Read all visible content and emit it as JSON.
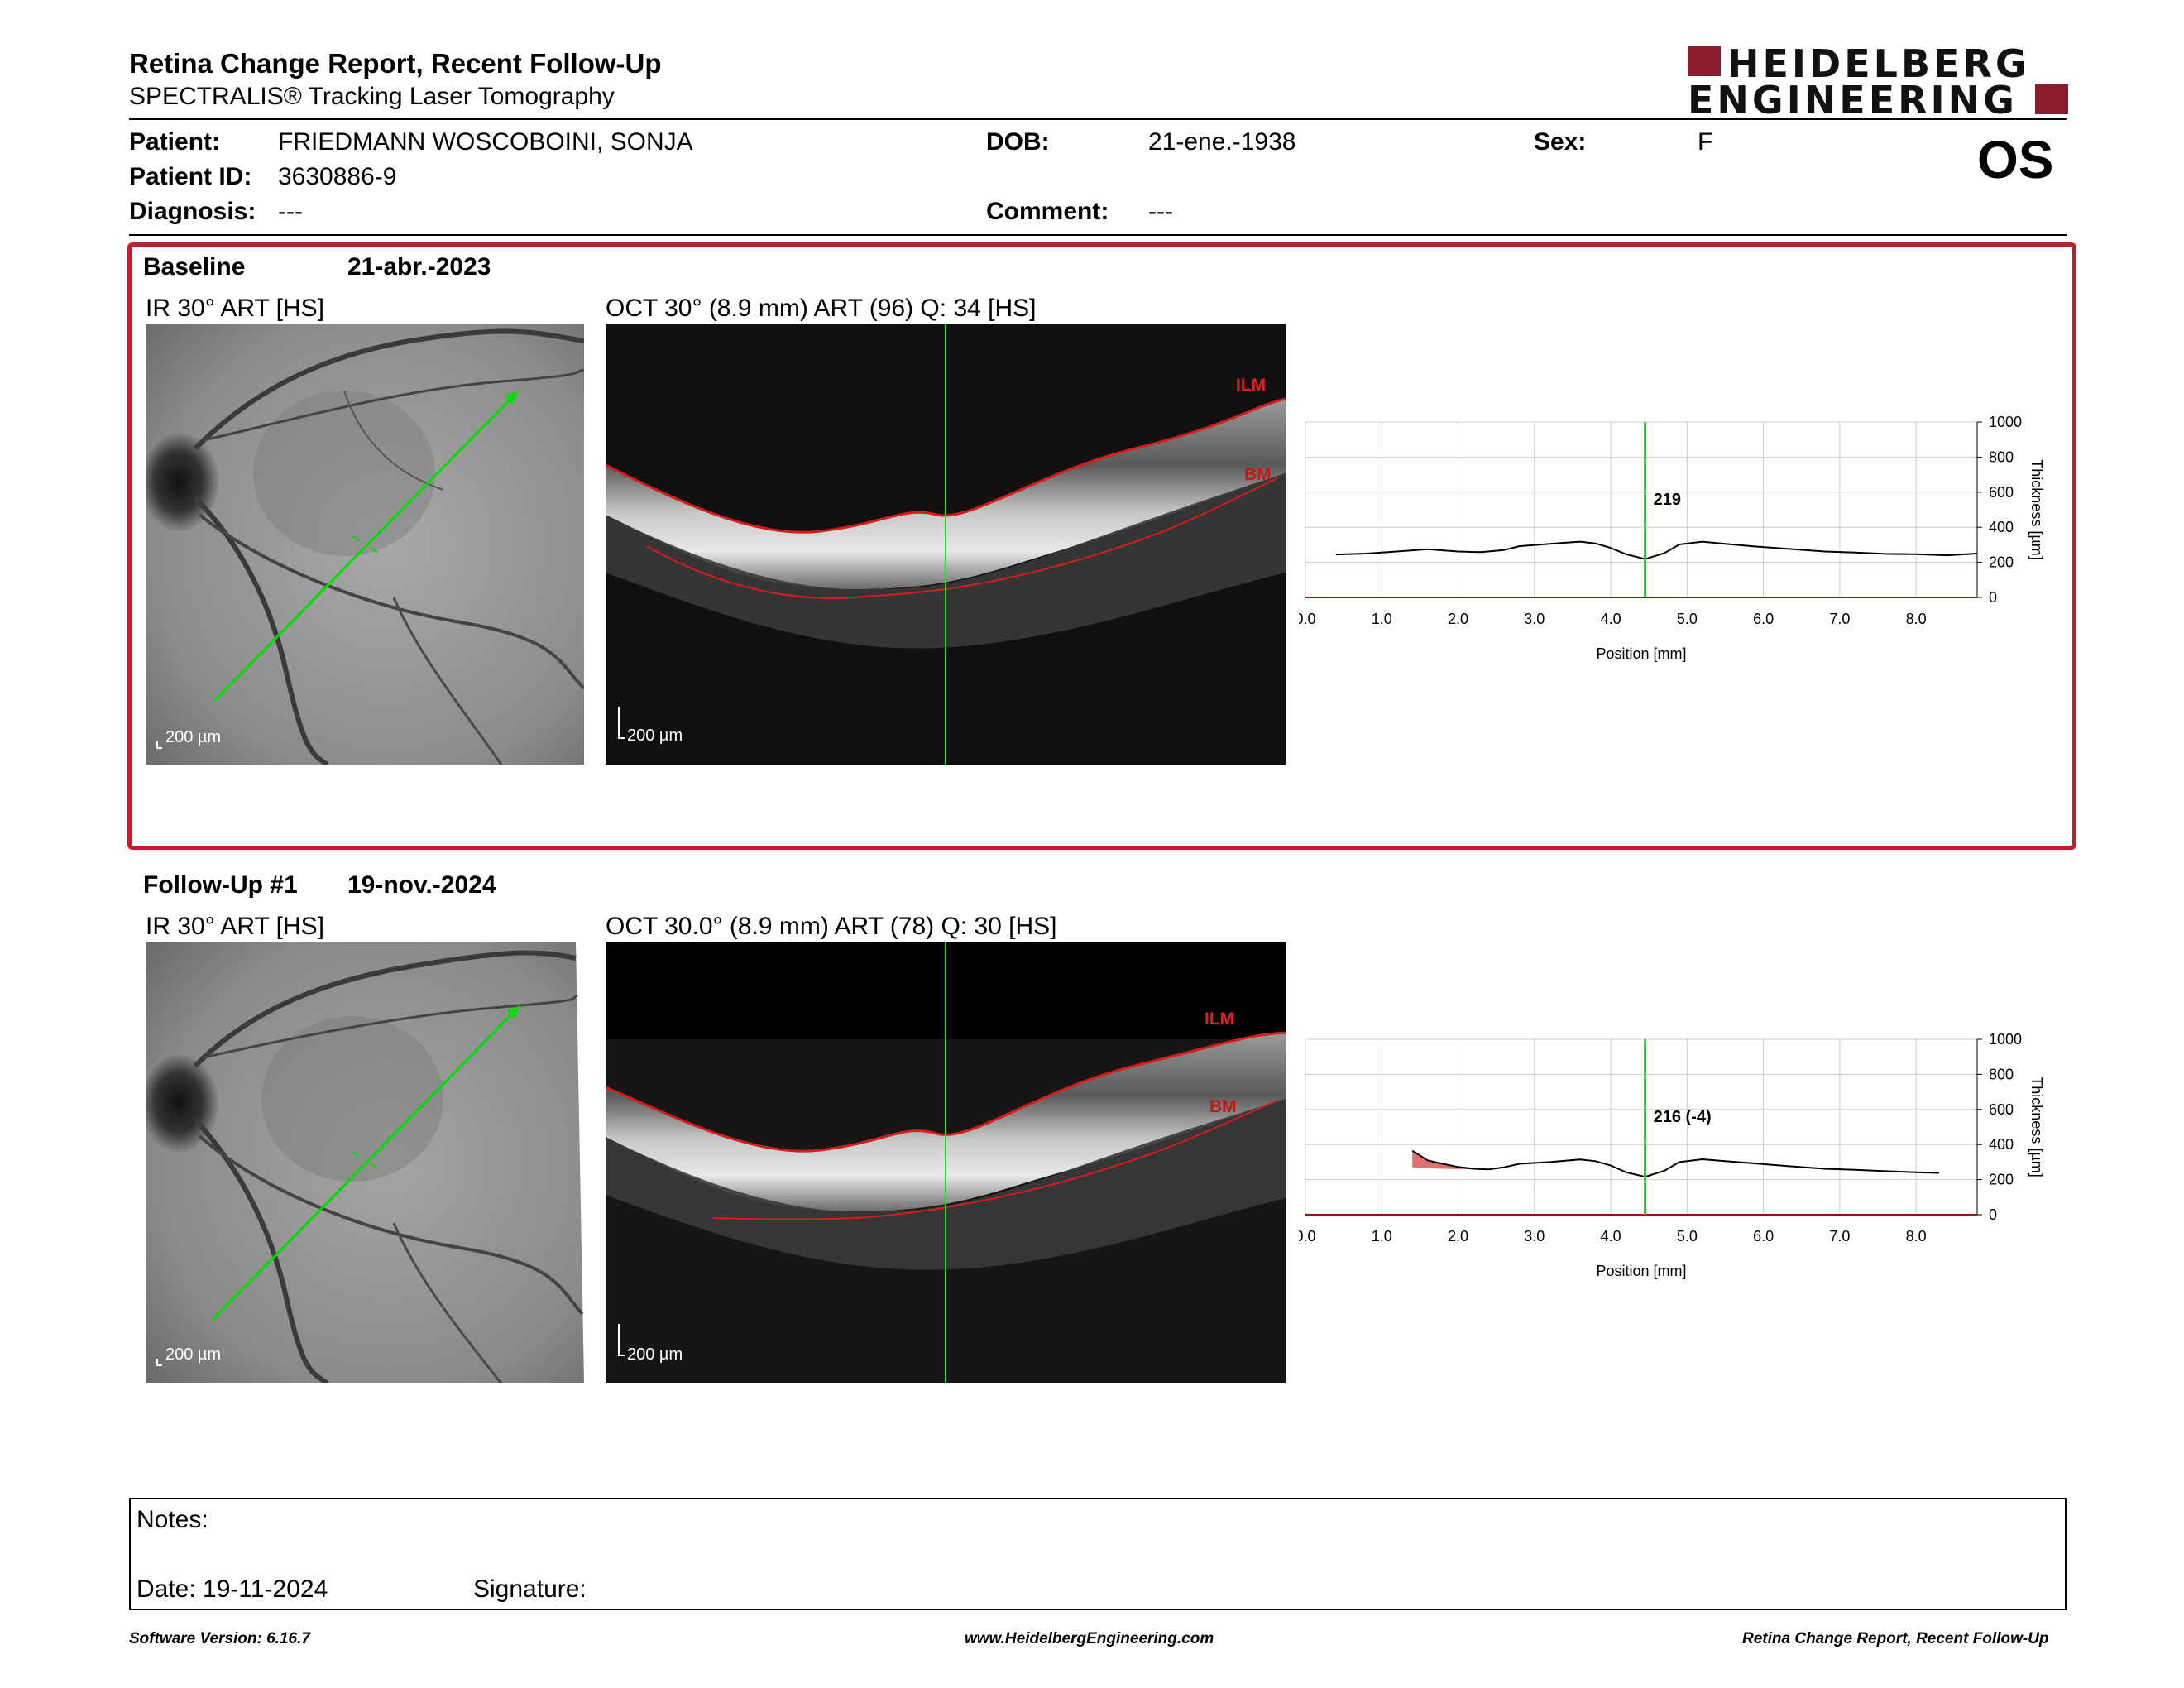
{
  "header": {
    "title": "Retina Change Report, Recent Follow-Up",
    "subtitle": "SPECTRALIS® Tracking Laser Tomography",
    "logo_line1": "HEIDELBERG",
    "logo_line2": "ENGINEERING",
    "eye": "OS",
    "brand_color": "#8b1c2c"
  },
  "patient": {
    "patient_label": "Patient:",
    "patient_name": "FRIEDMANN WOSCOBOINI,  SONJA",
    "dob_label": "DOB:",
    "dob": "21-ene.-1938",
    "sex_label": "Sex:",
    "sex": "F",
    "id_label": "Patient ID:",
    "id": "3630886-9",
    "diagnosis_label": "Diagnosis:",
    "diagnosis": "---",
    "comment_label": "Comment:",
    "comment": "---"
  },
  "baseline": {
    "label": "Baseline",
    "date": "21-abr.-2023",
    "ir_title": "IR 30° ART [HS]",
    "oct_title": "OCT 30° (8.9 mm) ART (96) Q: 34 [HS]",
    "ir_scale": "200 µm",
    "oct_scale": "200 µm",
    "ilm_label": "ILM",
    "bm_label": "BM",
    "box_color": "#c0202a"
  },
  "followup": {
    "label": "Follow-Up #1",
    "date": "19-nov.-2024",
    "ir_title": "IR 30° ART [HS]",
    "oct_title": "OCT 30.0° (8.9 mm) ART (78) Q: 30 [HS]",
    "ir_scale": "200 µm",
    "oct_scale": "200 µm",
    "ilm_label": "ILM",
    "bm_label": "BM"
  },
  "chart_data": [
    {
      "type": "line",
      "xlabel": "Position [mm]",
      "ylabel": "Thickness [µm]",
      "xlim": [
        0,
        8.8
      ],
      "ylim": [
        0,
        1000
      ],
      "xticks": [
        "0.0",
        "1.0",
        "2.0",
        "3.0",
        "4.0",
        "5.0",
        "6.0",
        "7.0",
        "8.0"
      ],
      "yticks": [
        "0",
        "200",
        "400",
        "600",
        "800",
        "1000"
      ],
      "grid": true,
      "cursor_x": 4.45,
      "cursor_label": "219",
      "cursor_color": "#22cc22",
      "series": [
        {
          "x": [
            0.4,
            0.8,
            1.2,
            1.6,
            2.0,
            2.3,
            2.6,
            2.8,
            3.2,
            3.6,
            3.8,
            4.0,
            4.2,
            4.45,
            4.7,
            4.9,
            5.2,
            5.5,
            5.9,
            6.3,
            6.8,
            7.2,
            7.6,
            8.0,
            8.4,
            8.8
          ],
          "y": [
            245,
            250,
            262,
            275,
            262,
            258,
            270,
            292,
            305,
            318,
            308,
            282,
            246,
            219,
            252,
            302,
            318,
            305,
            290,
            278,
            262,
            256,
            248,
            246,
            240,
            250
          ]
        }
      ]
    },
    {
      "type": "line",
      "xlabel": "Position [mm]",
      "ylabel": "Thickness [µm]",
      "xlim": [
        0,
        8.8
      ],
      "ylim": [
        0,
        1000
      ],
      "xticks": [
        "0.0",
        "1.0",
        "2.0",
        "3.0",
        "4.0",
        "5.0",
        "6.0",
        "7.0",
        "8.0"
      ],
      "yticks": [
        "0",
        "200",
        "400",
        "600",
        "800",
        "1000"
      ],
      "grid": true,
      "cursor_x": 4.45,
      "cursor_label": "216 (-4)",
      "cursor_color": "#22cc22",
      "change_fill_color": "#e07070",
      "series": [
        {
          "x": [
            1.4,
            1.6,
            1.8,
            2.0,
            2.2,
            2.4,
            2.6,
            2.8,
            3.2,
            3.6,
            3.8,
            4.0,
            4.2,
            4.45,
            4.7,
            4.9,
            5.2,
            5.5,
            5.9,
            6.3,
            6.8,
            7.2,
            7.6,
            8.0,
            8.3
          ],
          "y": [
            365,
            310,
            290,
            272,
            262,
            258,
            270,
            290,
            300,
            315,
            305,
            280,
            242,
            216,
            250,
            300,
            316,
            305,
            292,
            278,
            262,
            256,
            248,
            242,
            238
          ]
        },
        {
          "x": [
            1.4,
            1.6,
            1.8,
            2.0,
            2.2,
            2.4
          ],
          "y": [
            270,
            265,
            262,
            260,
            258,
            258
          ]
        }
      ]
    }
  ],
  "notes": {
    "notes_label": "Notes:",
    "date_label": "Date: 19-11-2024",
    "signature_label": "Signature:"
  },
  "footer": {
    "left": "Software Version: 6.16.7",
    "center": "www.HeidelbergEngineering.com",
    "right": "Retina Change Report, Recent Follow-Up"
  }
}
